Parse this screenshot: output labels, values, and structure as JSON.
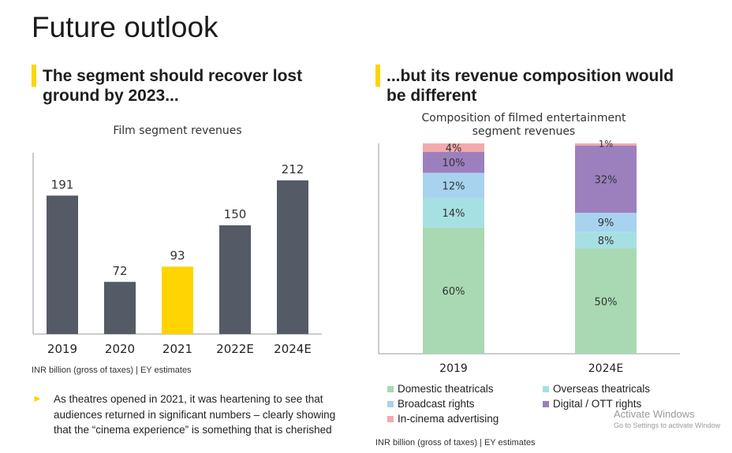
{
  "page_title": "Future outlook",
  "left_heading": "The segment should recover lost ground by 2023...",
  "right_heading": "...but its revenue composition would be different",
  "left_footnote": "INR billion (gross of taxes) | EY estimates",
  "right_footnote": "INR billion (gross of taxes) | EY estimates",
  "bullet_text": "As theatres opened in 2021, it was heartening to see that audiences returned in significant numbers – clearly showing that the “cinema experience” is something that is cherished",
  "watermark": {
    "line1": "Activate Windows",
    "line2": "Go to Settings to activate Window"
  },
  "colors": {
    "bar_default": "#545b66",
    "bar_highlight": "#ffd400",
    "accent": "#ffd400",
    "axis": "#999999",
    "domestic": "#a9d9b2",
    "overseas": "#a7e0e2",
    "broadcast": "#a8d3ee",
    "digital": "#9c80bd",
    "advertising": "#f4a9ac"
  },
  "chart_data": [
    {
      "type": "bar",
      "title": "Film segment revenues",
      "categories": [
        "2019",
        "2020",
        "2021",
        "2022E",
        "2024E"
      ],
      "values": [
        191,
        72,
        93,
        150,
        212
      ],
      "highlight": "2021",
      "ylim": [
        0,
        250
      ],
      "xlabel": "",
      "ylabel": ""
    },
    {
      "type": "bar",
      "stacked": true,
      "title": "Composition of filmed entertainment segment revenues",
      "categories": [
        "2019",
        "2024E"
      ],
      "series": [
        {
          "name": "Domestic theatricals",
          "values": [
            60,
            50
          ],
          "color_key": "domestic"
        },
        {
          "name": "Overseas theatricals",
          "values": [
            14,
            8
          ],
          "color_key": "overseas"
        },
        {
          "name": "Broadcast rights",
          "values": [
            12,
            9
          ],
          "color_key": "broadcast"
        },
        {
          "name": "Digital / OTT rights",
          "values": [
            10,
            32
          ],
          "color_key": "digital"
        },
        {
          "name": "In-cinema advertising",
          "values": [
            4,
            1
          ],
          "color_key": "advertising"
        }
      ],
      "value_suffix": "%",
      "ylim": [
        0,
        100
      ],
      "legend_position": "bottom"
    }
  ]
}
